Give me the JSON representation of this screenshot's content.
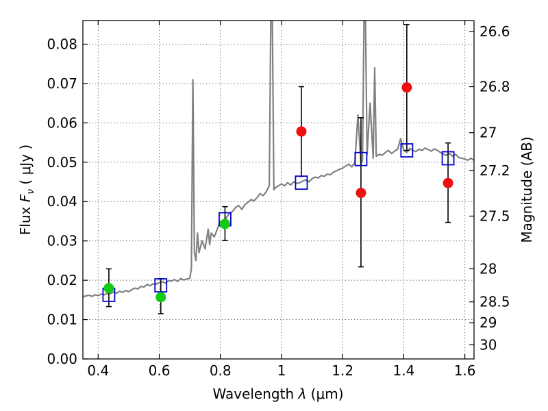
{
  "chart_data": {
    "type": "scatter",
    "xlabel": "Wavelength  λ (μm)",
    "ylabel": "Flux  F_ν  ( μJy )",
    "ylabel_parts": {
      "prefix": "Flux  ",
      "symbol": "F",
      "subscript": "ν",
      "suffix": "  ( μJy )"
    },
    "xlabel_parts": {
      "prefix": "Wavelength  ",
      "symbol": "λ",
      "suffix": " (μm)"
    },
    "y2label": "Magnitude (AB)",
    "xlim": [
      0.35,
      1.63
    ],
    "ylim": [
      0.0,
      0.086
    ],
    "grid": true,
    "x_ticks": [
      {
        "value": 0.4,
        "label": "0.4"
      },
      {
        "value": 0.6,
        "label": "0.6"
      },
      {
        "value": 0.8,
        "label": "0.8"
      },
      {
        "value": 1.0,
        "label": "1"
      },
      {
        "value": 1.2,
        "label": "1.2"
      },
      {
        "value": 1.4,
        "label": "1.4"
      },
      {
        "value": 1.6,
        "label": "1.6"
      }
    ],
    "y_ticks": [
      {
        "value": 0.0,
        "label": "0.00"
      },
      {
        "value": 0.01,
        "label": "0.01"
      },
      {
        "value": 0.02,
        "label": "0.02"
      },
      {
        "value": 0.03,
        "label": "0.03"
      },
      {
        "value": 0.04,
        "label": "0.04"
      },
      {
        "value": 0.05,
        "label": "0.05"
      },
      {
        "value": 0.06,
        "label": "0.06"
      },
      {
        "value": 0.07,
        "label": "0.07"
      },
      {
        "value": 0.08,
        "label": "0.08"
      }
    ],
    "y2_ticks": [
      {
        "flux": 0.0832,
        "label": "26.6"
      },
      {
        "flux": 0.0692,
        "label": "26.8"
      },
      {
        "flux": 0.0575,
        "label": "27"
      },
      {
        "flux": 0.0479,
        "label": "27.2"
      },
      {
        "flux": 0.0363,
        "label": "27.5"
      },
      {
        "flux": 0.0229,
        "label": "28"
      },
      {
        "flux": 0.0145,
        "label": "28.5"
      },
      {
        "flux": 0.0092,
        "label": "29"
      },
      {
        "flux": 0.0036,
        "label": "30"
      }
    ],
    "colors": {
      "spectrum": "#808080",
      "model_square": "#0000cc",
      "green_point": "#11cc11",
      "red_point": "#ee1111",
      "error_bar": "#000000",
      "grid": "#777777"
    },
    "series": [
      {
        "kind": "spectrum",
        "x": [
          0.35,
          0.36,
          0.37,
          0.38,
          0.39,
          0.4,
          0.41,
          0.42,
          0.43,
          0.44,
          0.45,
          0.46,
          0.47,
          0.48,
          0.49,
          0.5,
          0.51,
          0.52,
          0.53,
          0.54,
          0.55,
          0.56,
          0.57,
          0.58,
          0.59,
          0.6,
          0.61,
          0.62,
          0.63,
          0.64,
          0.65,
          0.66,
          0.67,
          0.68,
          0.69,
          0.7,
          0.705,
          0.71,
          0.715,
          0.72,
          0.725,
          0.73,
          0.74,
          0.75,
          0.76,
          0.765,
          0.77,
          0.78,
          0.79,
          0.8,
          0.81,
          0.82,
          0.83,
          0.84,
          0.85,
          0.86,
          0.87,
          0.88,
          0.89,
          0.9,
          0.91,
          0.92,
          0.93,
          0.94,
          0.95,
          0.96,
          0.965,
          0.97,
          0.975,
          0.98,
          0.99,
          1.0,
          1.01,
          1.02,
          1.03,
          1.04,
          1.05,
          1.06,
          1.07,
          1.08,
          1.09,
          1.1,
          1.11,
          1.12,
          1.13,
          1.14,
          1.15,
          1.16,
          1.17,
          1.18,
          1.19,
          1.2,
          1.21,
          1.22,
          1.23,
          1.24,
          1.25,
          1.26,
          1.265,
          1.27,
          1.275,
          1.28,
          1.29,
          1.3,
          1.305,
          1.31,
          1.32,
          1.33,
          1.34,
          1.35,
          1.36,
          1.37,
          1.38,
          1.39,
          1.4,
          1.41,
          1.42,
          1.43,
          1.44,
          1.45,
          1.46,
          1.47,
          1.48,
          1.49,
          1.5,
          1.51,
          1.52,
          1.53,
          1.54,
          1.55,
          1.56,
          1.57,
          1.58,
          1.59,
          1.6,
          1.61,
          1.62,
          1.63
        ],
        "y": [
          0.0158,
          0.016,
          0.0162,
          0.0159,
          0.0163,
          0.0161,
          0.0165,
          0.0163,
          0.0167,
          0.0166,
          0.017,
          0.0167,
          0.0172,
          0.0169,
          0.0174,
          0.0171,
          0.0176,
          0.018,
          0.0178,
          0.0184,
          0.0183,
          0.0189,
          0.0186,
          0.0191,
          0.019,
          0.0194,
          0.0196,
          0.0193,
          0.0199,
          0.0198,
          0.0202,
          0.0197,
          0.0204,
          0.0201,
          0.0203,
          0.0205,
          0.023,
          0.071,
          0.027,
          0.025,
          0.032,
          0.027,
          0.03,
          0.028,
          0.033,
          0.029,
          0.032,
          0.031,
          0.033,
          0.035,
          0.034,
          0.036,
          0.037,
          0.0375,
          0.0385,
          0.039,
          0.038,
          0.0392,
          0.0398,
          0.0405,
          0.0402,
          0.041,
          0.042,
          0.0415,
          0.0425,
          0.044,
          0.086,
          0.086,
          0.043,
          0.0435,
          0.044,
          0.0445,
          0.044,
          0.0448,
          0.0442,
          0.045,
          0.0446,
          0.0448,
          0.0452,
          0.0455,
          0.045,
          0.0458,
          0.0462,
          0.046,
          0.0466,
          0.0464,
          0.047,
          0.0468,
          0.0475,
          0.0478,
          0.0482,
          0.0485,
          0.049,
          0.0495,
          0.0488,
          0.05,
          0.062,
          0.0495,
          0.0505,
          0.086,
          0.086,
          0.052,
          0.065,
          0.051,
          0.074,
          0.0515,
          0.052,
          0.0518,
          0.0525,
          0.053,
          0.0522,
          0.0528,
          0.0533,
          0.056,
          0.053,
          0.0525,
          0.0535,
          0.053,
          0.0527,
          0.0533,
          0.053,
          0.0536,
          0.0532,
          0.0528,
          0.0534,
          0.053,
          0.0525,
          0.052,
          0.0518,
          0.0522,
          0.0515,
          0.052,
          0.0512,
          0.051,
          0.0508,
          0.0505,
          0.051,
          0.0505
        ]
      },
      {
        "kind": "model_squares",
        "x": [
          0.435,
          0.605,
          0.815,
          1.065,
          1.26,
          1.41,
          1.545
        ],
        "y": [
          0.0163,
          0.0187,
          0.0355,
          0.0448,
          0.0508,
          0.053,
          0.051
        ]
      },
      {
        "kind": "green_points",
        "x": [
          0.435,
          0.605,
          0.815
        ],
        "y": [
          0.018,
          0.0157,
          0.0343
        ],
        "yerr_low": [
          0.0047,
          0.0042,
          0.0042
        ],
        "yerr_high": [
          0.0049,
          0.0047,
          0.0044
        ]
      },
      {
        "kind": "red_points",
        "x": [
          1.065,
          1.26,
          1.41,
          1.545
        ],
        "y": [
          0.0578,
          0.0422,
          0.069,
          0.0447
        ],
        "yerr_low": [
          0.0114,
          0.0188,
          0.016,
          0.01
        ],
        "yerr_high": [
          0.0114,
          0.0191,
          0.016,
          0.0102
        ]
      }
    ]
  }
}
